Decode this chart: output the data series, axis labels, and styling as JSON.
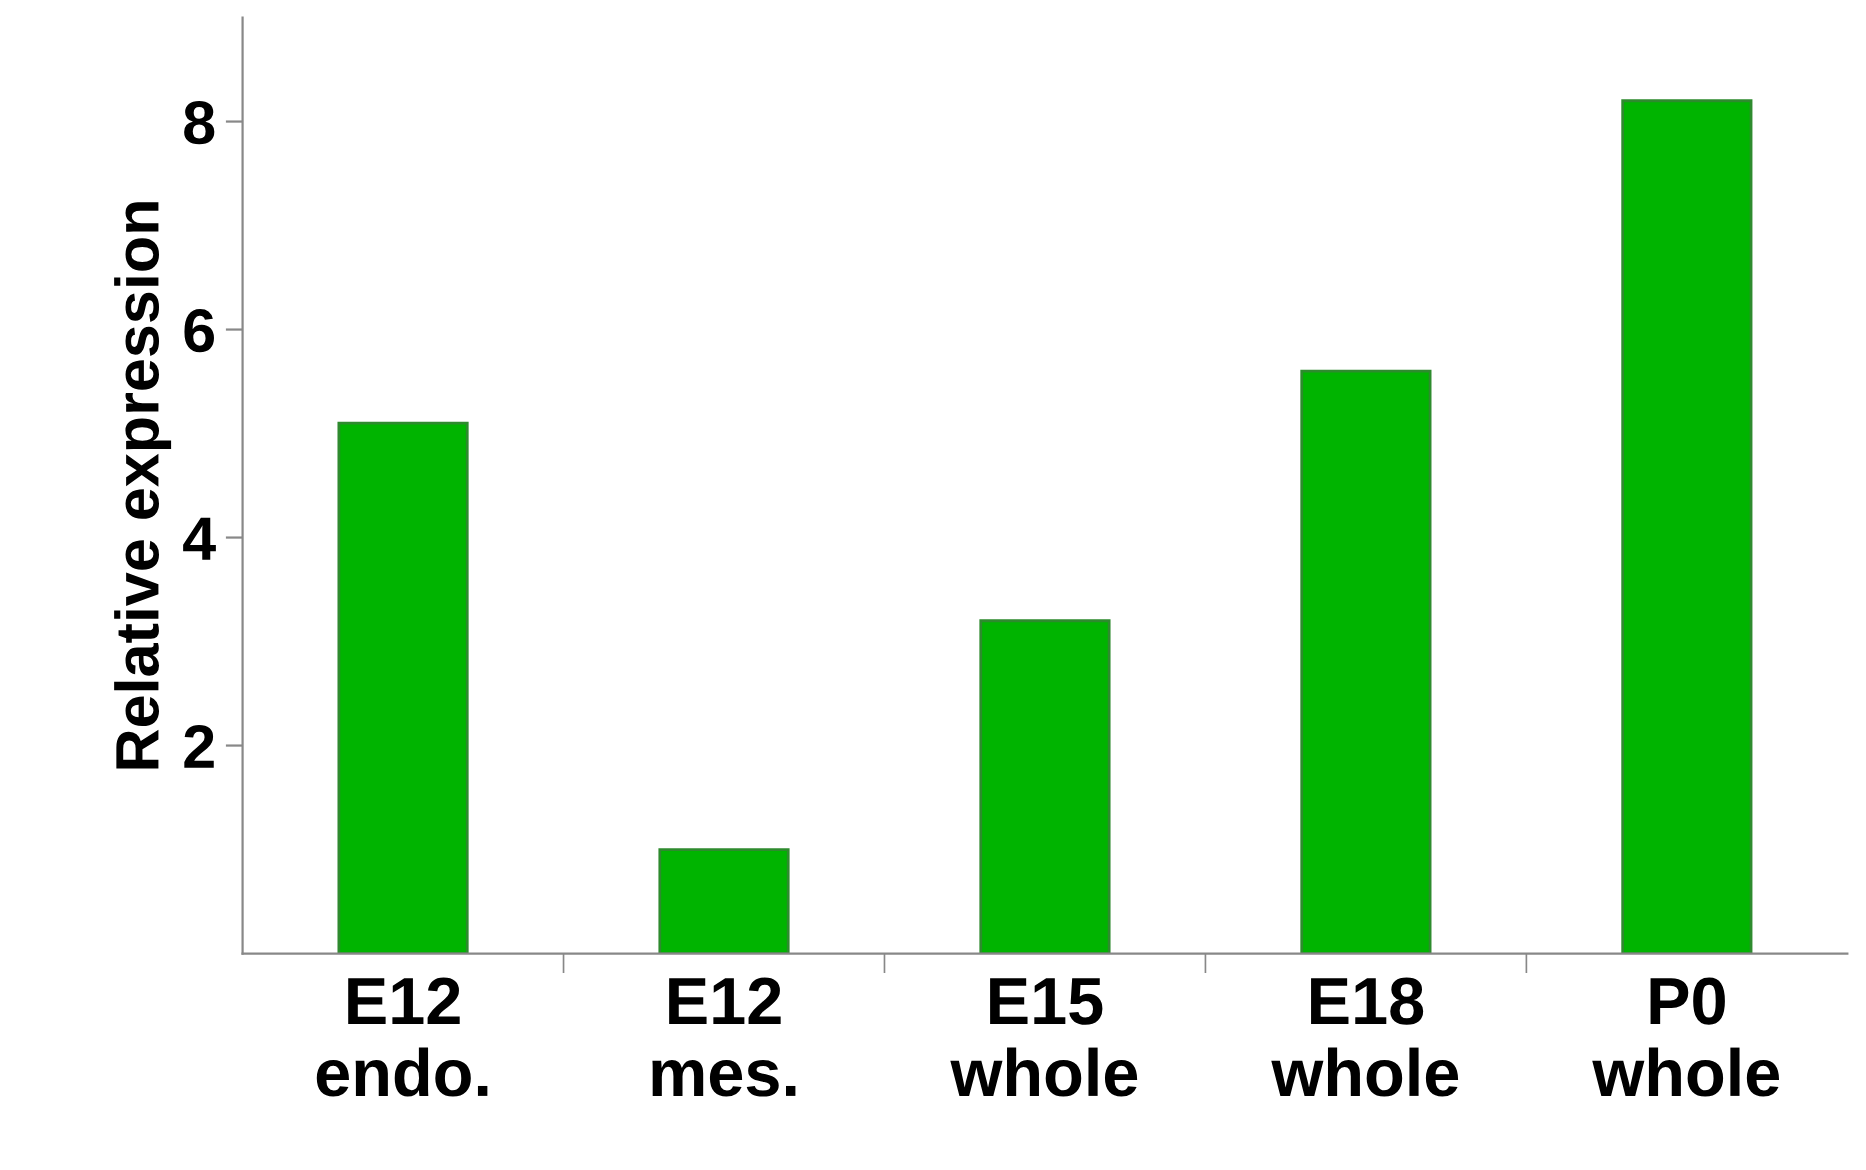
{
  "chart_data": {
    "type": "bar",
    "ylabel": "Relative expression",
    "categories": [
      "E12\nendo.",
      "E12\nmes.",
      "E15\nwhole",
      "E18\nwhole",
      "P0\nwhole"
    ],
    "values": [
      5.1,
      1.0,
      3.2,
      5.6,
      8.2
    ],
    "color": "#00b400",
    "ylim": [
      0,
      9
    ],
    "yticks": [
      2,
      4,
      6,
      8
    ],
    "grid": false,
    "legend": false
  }
}
